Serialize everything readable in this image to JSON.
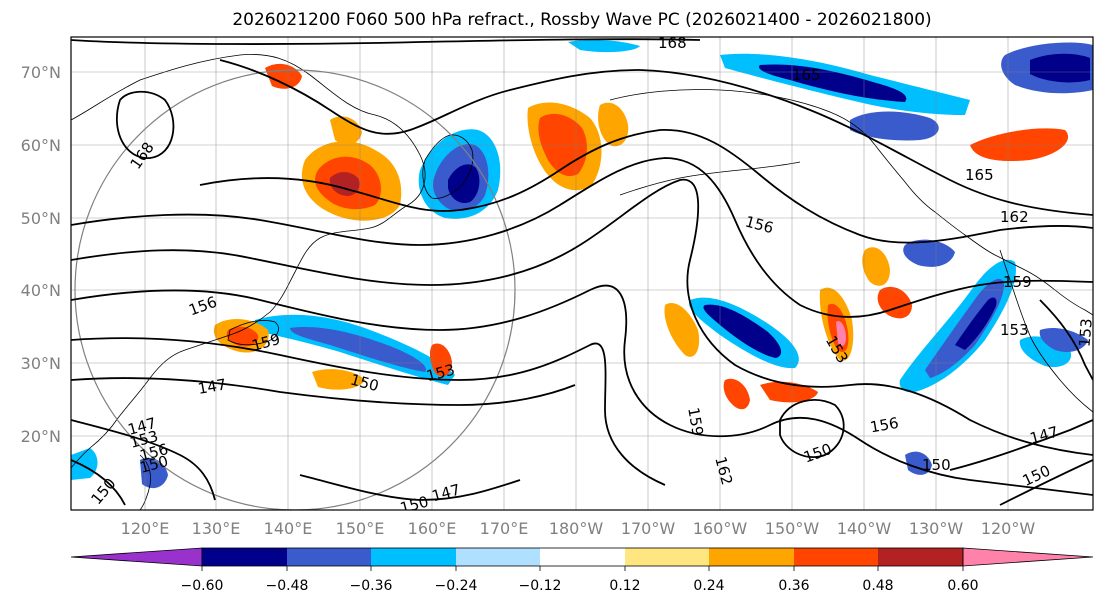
{
  "title": "2026021200 F060 500 hPa refract., Rossby Wave PC (2026021400 - 2026021800)",
  "map": {
    "projection": "PlateCarree",
    "lon_range": [
      110,
      -120
    ],
    "lat_range": [
      10,
      75
    ],
    "lat_ticks": [
      "70°N",
      "60°N",
      "50°N",
      "40°N",
      "30°N",
      "20°N"
    ],
    "lon_ticks": [
      "120°E",
      "130°E",
      "140°E",
      "150°E",
      "160°E",
      "170°E",
      "180°W",
      "170°W",
      "160°W",
      "150°W",
      "140°W",
      "130°W",
      "120°W"
    ],
    "contour_labels": [
      "168",
      "168",
      "165",
      "165",
      "162",
      "159",
      "159",
      "156",
      "156",
      "156",
      "153",
      "153",
      "153",
      "153",
      "150",
      "150",
      "150",
      "150",
      "150",
      "147",
      "147",
      "147",
      "147",
      "150",
      "153",
      "156",
      "159",
      "162",
      "150"
    ]
  },
  "colorbar": {
    "ticks": [
      "−0.60",
      "−0.48",
      "−0.36",
      "−0.24",
      "−0.12",
      "0.12",
      "0.24",
      "0.36",
      "0.48",
      "0.60"
    ],
    "colors": {
      "low_extend": "#9932cc",
      "n060": "#00008b",
      "n048": "#3a5bcc",
      "n036": "#00bfff",
      "n024": "#b0e0ff",
      "neutral": "#ffffff",
      "p012": "#ffe680",
      "p024": "#ffa500",
      "p036": "#ff4500",
      "p048": "#b22222",
      "high_extend": "#ff82ab"
    }
  }
}
